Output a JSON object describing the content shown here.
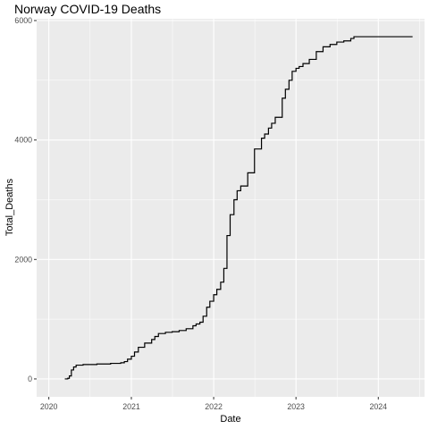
{
  "chart_data": {
    "type": "line",
    "title": "Norway COVID-19 Deaths",
    "xlabel": "Date",
    "ylabel": "Total_Deaths",
    "x_tick_labels": [
      "2020",
      "2021",
      "2022",
      "2023",
      "2024"
    ],
    "y_tick_labels": [
      "0",
      "2000",
      "4000",
      "6000"
    ],
    "x_ticks": [
      "2020-01-01",
      "2021-01-01",
      "2022-01-01",
      "2023-01-01",
      "2024-01-01"
    ],
    "y_ticks": [
      0,
      2000,
      4000,
      6000
    ],
    "xlim": [
      "2019-11-08",
      "2024-07-24"
    ],
    "ylim": [
      -300,
      6030
    ],
    "grid": true,
    "line_style": "step",
    "line_color": "#000000",
    "panel_color": "#ebebeb",
    "grid_color": "#ffffff",
    "series": [
      {
        "x": [
          "2020-03-12",
          "2020-03-25",
          "2020-04-01",
          "2020-04-10",
          "2020-04-20",
          "2020-05-01",
          "2020-06-01",
          "2020-08-01",
          "2020-10-01",
          "2020-11-15",
          "2020-12-01",
          "2020-12-15",
          "2021-01-01",
          "2021-01-15",
          "2021-02-01",
          "2021-03-01",
          "2021-04-01",
          "2021-04-15",
          "2021-05-01",
          "2021-06-01",
          "2021-07-01",
          "2021-08-01",
          "2021-09-01",
          "2021-10-01",
          "2021-10-15",
          "2021-11-01",
          "2021-11-15",
          "2021-12-01",
          "2021-12-15",
          "2022-01-01",
          "2022-01-15",
          "2022-02-01",
          "2022-02-15",
          "2022-03-01",
          "2022-03-15",
          "2022-04-01",
          "2022-04-15",
          "2022-05-01",
          "2022-06-01",
          "2022-07-01",
          "2022-08-01",
          "2022-08-15",
          "2022-09-01",
          "2022-09-15",
          "2022-10-01",
          "2022-11-01",
          "2022-11-15",
          "2022-12-01",
          "2022-12-15",
          "2023-01-01",
          "2023-01-15",
          "2023-02-01",
          "2023-03-01",
          "2023-04-01",
          "2023-05-01",
          "2023-06-01",
          "2023-07-01",
          "2023-08-01",
          "2023-09-01",
          "2023-09-15",
          "2023-10-01",
          "2023-11-01",
          "2023-12-01",
          "2024-01-01",
          "2024-02-01",
          "2024-03-01",
          "2024-04-01",
          "2024-05-01",
          "2024-06-01"
        ],
        "y": [
          0,
          10,
          50,
          150,
          200,
          230,
          240,
          250,
          260,
          270,
          290,
          330,
          380,
          450,
          530,
          600,
          660,
          710,
          760,
          780,
          790,
          810,
          840,
          890,
          920,
          950,
          1050,
          1200,
          1300,
          1410,
          1500,
          1620,
          1850,
          2400,
          2750,
          3000,
          3150,
          3230,
          3450,
          3850,
          4030,
          4100,
          4200,
          4280,
          4380,
          4700,
          4850,
          5000,
          5150,
          5200,
          5230,
          5280,
          5350,
          5480,
          5560,
          5600,
          5640,
          5660,
          5700,
          5730,
          5730,
          5730,
          5730,
          5730,
          5730,
          5730,
          5730,
          5730,
          5730
        ]
      }
    ]
  }
}
